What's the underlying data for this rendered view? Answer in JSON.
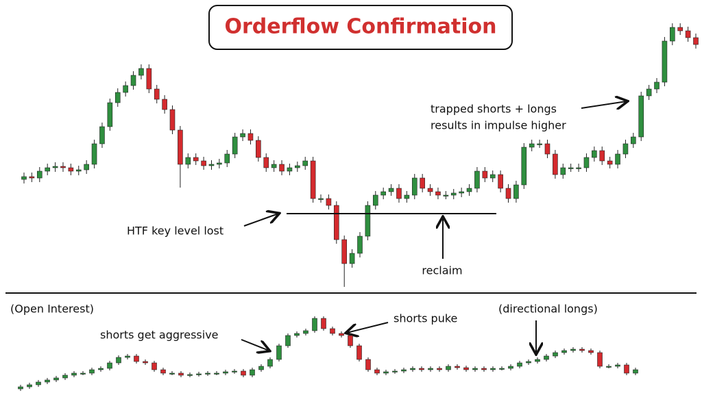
{
  "chart_data": [
    {
      "type": "candlestick",
      "title": "Orderflow Confirmation",
      "annotations": [
        "trapped shorts + longs",
        "results in impulse higher",
        "HTF key level lost",
        "reclaim"
      ],
      "key_level": 262,
      "ylim": [
        0,
        574
      ],
      "up_color": "#2f8f3f",
      "down_color": "#d42a2e",
      "open": [
        312,
        316,
        314,
        324,
        329,
        331,
        329,
        324,
        326,
        334,
        364,
        389,
        424,
        439,
        449,
        464,
        474,
        444,
        429,
        414,
        384,
        334,
        344,
        339,
        332,
        334,
        336,
        349,
        374,
        379,
        369,
        344,
        329,
        334,
        324,
        329,
        332,
        339,
        284,
        284,
        274,
        224,
        189,
        204,
        229,
        274,
        289,
        294,
        299,
        284,
        289,
        314,
        299,
        294,
        289,
        289,
        292,
        294,
        299,
        324,
        314,
        319,
        299,
        284,
        304,
        359,
        364,
        364,
        349,
        319,
        329,
        329,
        329,
        344,
        354,
        339,
        334,
        349,
        364,
        374,
        434,
        444,
        454,
        514,
        534,
        529,
        519
      ],
      "high": [
        322,
        322,
        330,
        335,
        337,
        337,
        335,
        332,
        340,
        370,
        395,
        430,
        445,
        455,
        470,
        480,
        480,
        450,
        435,
        420,
        390,
        350,
        350,
        345,
        340,
        342,
        355,
        380,
        385,
        385,
        375,
        350,
        340,
        340,
        335,
        338,
        345,
        345,
        290,
        290,
        280,
        230,
        210,
        235,
        280,
        295,
        300,
        305,
        305,
        295,
        320,
        320,
        305,
        300,
        295,
        298,
        300,
        305,
        330,
        330,
        325,
        325,
        305,
        310,
        365,
        370,
        370,
        370,
        355,
        335,
        335,
        335,
        350,
        360,
        360,
        345,
        355,
        370,
        380,
        440,
        450,
        460,
        520,
        540,
        540,
        535,
        525
      ],
      "low": [
        306,
        308,
        308,
        318,
        323,
        323,
        318,
        318,
        320,
        328,
        358,
        383,
        418,
        433,
        443,
        458,
        438,
        423,
        408,
        378,
        300,
        328,
        333,
        326,
        326,
        328,
        330,
        343,
        368,
        363,
        338,
        323,
        323,
        318,
        318,
        323,
        326,
        278,
        278,
        268,
        218,
        155,
        183,
        198,
        223,
        268,
        283,
        288,
        278,
        278,
        283,
        293,
        288,
        283,
        283,
        283,
        286,
        288,
        293,
        308,
        308,
        293,
        278,
        278,
        298,
        353,
        358,
        343,
        313,
        313,
        323,
        323,
        323,
        338,
        333,
        328,
        328,
        343,
        358,
        368,
        428,
        438,
        448,
        508,
        523,
        513,
        503
      ],
      "close": [
        316,
        314,
        324,
        329,
        331,
        329,
        324,
        326,
        334,
        364,
        389,
        424,
        439,
        449,
        464,
        474,
        444,
        429,
        414,
        384,
        334,
        344,
        339,
        332,
        334,
        336,
        349,
        374,
        379,
        369,
        344,
        329,
        334,
        324,
        329,
        332,
        339,
        284,
        284,
        274,
        224,
        189,
        204,
        229,
        274,
        289,
        294,
        299,
        284,
        289,
        314,
        299,
        294,
        289,
        289,
        292,
        294,
        299,
        324,
        314,
        319,
        299,
        284,
        304,
        359,
        364,
        364,
        349,
        319,
        329,
        329,
        329,
        344,
        354,
        339,
        334,
        349,
        364,
        374,
        434,
        444,
        454,
        514,
        534,
        529,
        519,
        509
      ]
    },
    {
      "type": "candlestick",
      "title": "(Open Interest)",
      "annotations": [
        "shorts get aggressive",
        "shorts puke",
        "(directional longs)"
      ],
      "ylim": [
        4,
        119
      ],
      "up_color": "#2f8f3f",
      "down_color": "#d42a2e",
      "open": [
        6,
        9,
        12,
        16,
        19,
        22,
        26,
        29,
        29,
        34,
        36,
        44,
        52,
        54,
        46,
        44,
        34,
        29,
        29,
        26,
        27,
        28,
        29,
        29,
        31,
        32,
        26,
        34,
        39,
        49,
        69,
        84,
        87,
        91,
        109,
        94,
        87,
        84,
        69,
        49,
        34,
        29,
        31,
        32,
        34,
        36,
        34,
        36,
        34,
        39,
        37,
        34,
        36,
        34,
        36,
        36,
        39,
        44,
        46,
        49,
        54,
        59,
        62,
        64,
        62,
        59,
        39,
        39,
        41,
        29
      ],
      "high": [
        12,
        15,
        19,
        22,
        25,
        29,
        32,
        32,
        37,
        39,
        47,
        55,
        57,
        57,
        49,
        47,
        37,
        32,
        32,
        30,
        31,
        32,
        32,
        34,
        35,
        35,
        37,
        42,
        52,
        72,
        87,
        90,
        94,
        112,
        112,
        97,
        90,
        87,
        72,
        52,
        37,
        34,
        35,
        37,
        39,
        39,
        39,
        39,
        42,
        42,
        40,
        39,
        39,
        39,
        39,
        42,
        47,
        49,
        52,
        57,
        62,
        65,
        67,
        67,
        65,
        62,
        42,
        44,
        44,
        37
      ],
      "low": [
        3,
        6,
        9,
        13,
        16,
        19,
        23,
        26,
        26,
        31,
        33,
        41,
        49,
        43,
        41,
        31,
        26,
        26,
        23,
        23,
        24,
        25,
        26,
        26,
        28,
        23,
        23,
        31,
        36,
        46,
        66,
        81,
        84,
        88,
        91,
        84,
        81,
        66,
        46,
        31,
        26,
        26,
        28,
        29,
        31,
        31,
        31,
        31,
        31,
        34,
        31,
        31,
        31,
        31,
        33,
        33,
        36,
        41,
        43,
        46,
        51,
        56,
        59,
        59,
        56,
        36,
        36,
        36,
        26,
        26
      ],
      "close": [
        9,
        12,
        16,
        19,
        22,
        26,
        29,
        29,
        34,
        36,
        44,
        52,
        54,
        46,
        44,
        34,
        29,
        29,
        26,
        27,
        28,
        29,
        29,
        31,
        32,
        26,
        34,
        39,
        49,
        69,
        84,
        87,
        91,
        109,
        94,
        87,
        84,
        69,
        49,
        34,
        29,
        31,
        32,
        34,
        36,
        34,
        36,
        34,
        39,
        37,
        34,
        36,
        34,
        36,
        36,
        39,
        44,
        46,
        49,
        54,
        59,
        62,
        64,
        62,
        59,
        39,
        39,
        41,
        29,
        34
      ]
    }
  ]
}
